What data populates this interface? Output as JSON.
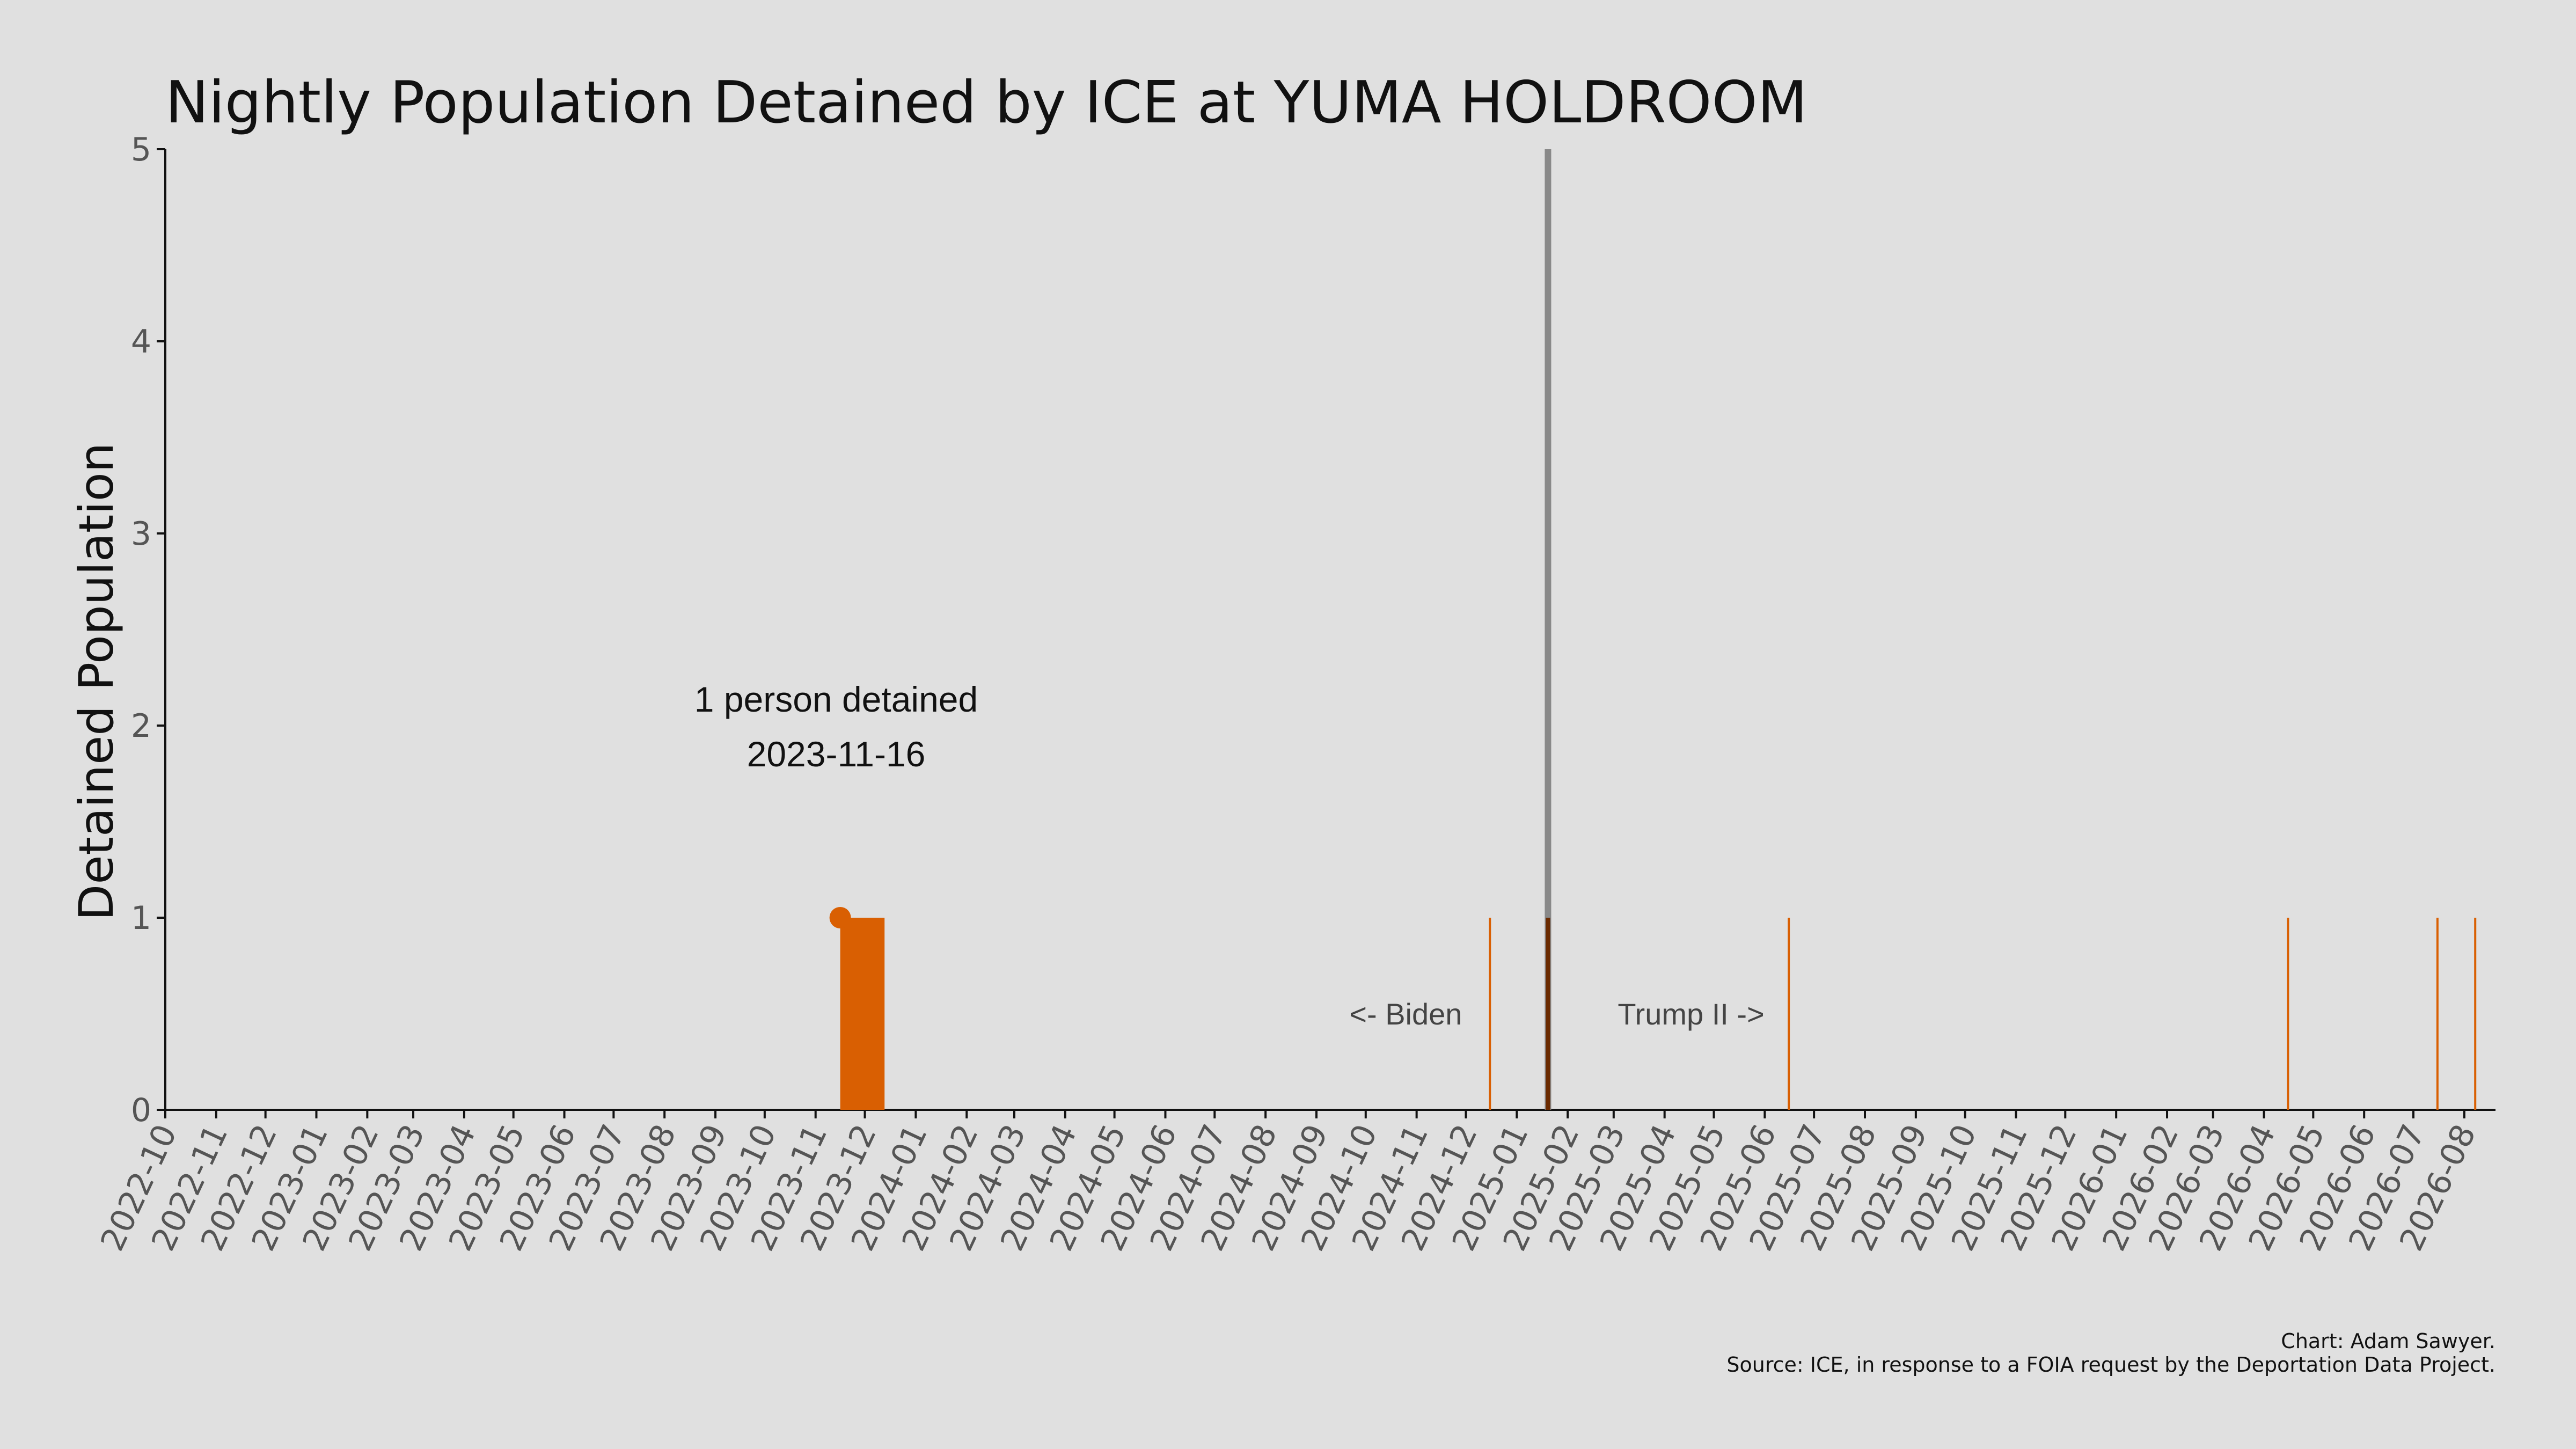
{
  "chart_data": {
    "type": "bar",
    "title": "Nightly Population Detained by ICE at YUMA HOLDROOM",
    "ylabel": "Detained Population",
    "xlabel": "",
    "ylim": [
      0,
      5
    ],
    "yticks": [
      0,
      1,
      2,
      3,
      4,
      5
    ],
    "xlim": [
      "2022-10-01",
      "2026-08-20"
    ],
    "xtick_labels": [
      "2022-10",
      "2022-11",
      "2022-12",
      "2023-01",
      "2023-02",
      "2023-03",
      "2023-04",
      "2023-05",
      "2023-06",
      "2023-07",
      "2023-08",
      "2023-09",
      "2023-10",
      "2023-11",
      "2023-12",
      "2024-01",
      "2024-02",
      "2024-03",
      "2024-04",
      "2024-05",
      "2024-06",
      "2024-07",
      "2024-08",
      "2024-09",
      "2024-10",
      "2024-11",
      "2024-12",
      "2025-01",
      "2025-02",
      "2025-03",
      "2025-04",
      "2025-05",
      "2025-06",
      "2025-07",
      "2025-08",
      "2025-09",
      "2025-10",
      "2025-11",
      "2025-12",
      "2026-01",
      "2026-02",
      "2026-03",
      "2026-04",
      "2026-05",
      "2026-06",
      "2026-07",
      "2026-08"
    ],
    "grid": false,
    "bar_color": "#d95f02",
    "highlight_color": "#d95f02",
    "divider_color": "#808080",
    "divider_date": "2025-01-20",
    "bars": [
      {
        "start": "2023-11-16",
        "end": "2023-12-12",
        "value": 1
      },
      {
        "start": "2024-12-15",
        "end": "2024-12-15",
        "value": 1
      },
      {
        "start": "2025-01-20",
        "end": "2025-01-20",
        "value": 1
      },
      {
        "start": "2025-06-15",
        "end": "2025-06-15",
        "value": 1
      },
      {
        "start": "2026-04-15",
        "end": "2026-04-15",
        "value": 1
      },
      {
        "start": "2026-07-15",
        "end": "2026-07-15",
        "value": 1
      },
      {
        "start": "2026-08-07",
        "end": "2026-08-07",
        "value": 1
      }
    ],
    "highlight_point": {
      "x": "2023-11-16",
      "y": 1
    },
    "annotation": {
      "line1": "1 person detained",
      "line2": "2023-11-16"
    },
    "era_labels": {
      "left": "<- Biden",
      "right": "Trump II ->"
    }
  },
  "credits": {
    "line1": "Chart: Adam Sawyer.",
    "line2": "Source: ICE, in response to a FOIA request by the Deportation Data Project."
  }
}
